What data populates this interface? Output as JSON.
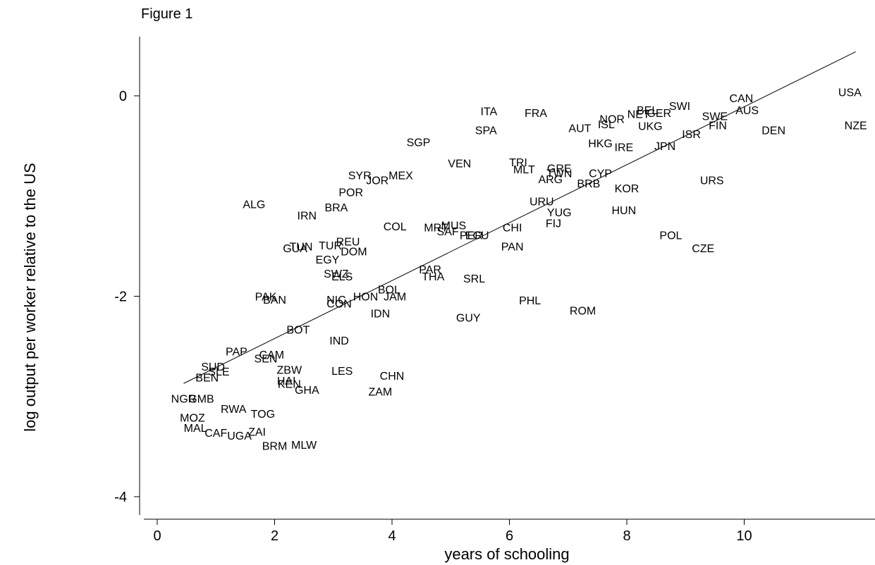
{
  "figure_title": "Figure 1",
  "chart_data": {
    "type": "scatter",
    "xlabel": "years of schooling",
    "ylabel": "log output per worker relative to the US",
    "xlim": [
      -0.3,
      12.4
    ],
    "ylim": [
      -4.2,
      0.6
    ],
    "xticks": [
      0,
      2,
      4,
      6,
      8,
      10
    ],
    "yticks": [
      0,
      -2,
      -4
    ],
    "xtick_labels": [
      "0",
      "2",
      "4",
      "6",
      "8",
      "10"
    ],
    "ytick_labels": [
      "0",
      "-2",
      "-4"
    ],
    "grid": false,
    "marker": "country code text",
    "fit_line": {
      "x": [
        0.45,
        11.9
      ],
      "y": [
        -2.87,
        0.44
      ]
    },
    "points": [
      {
        "label": "USA",
        "x": 11.8,
        "y": 0.04
      },
      {
        "label": "NZE",
        "x": 11.9,
        "y": -0.29
      },
      {
        "label": "CAN",
        "x": 9.95,
        "y": -0.02
      },
      {
        "label": "AUS",
        "x": 10.05,
        "y": -0.14
      },
      {
        "label": "DEN",
        "x": 10.5,
        "y": -0.34
      },
      {
        "label": "SWI",
        "x": 8.9,
        "y": -0.1
      },
      {
        "label": "SWE",
        "x": 9.5,
        "y": -0.2
      },
      {
        "label": "FIN",
        "x": 9.55,
        "y": -0.29
      },
      {
        "label": "BEL",
        "x": 8.35,
        "y": -0.14
      },
      {
        "label": "NET",
        "x": 8.2,
        "y": -0.18
      },
      {
        "label": "GER",
        "x": 8.55,
        "y": -0.17
      },
      {
        "label": "NOR",
        "x": 7.75,
        "y": -0.23
      },
      {
        "label": "ISL",
        "x": 7.65,
        "y": -0.28
      },
      {
        "label": "UKG",
        "x": 8.4,
        "y": -0.3
      },
      {
        "label": "AUT",
        "x": 7.2,
        "y": -0.32
      },
      {
        "label": "ISR",
        "x": 9.1,
        "y": -0.38
      },
      {
        "label": "ITA",
        "x": 5.65,
        "y": -0.15
      },
      {
        "label": "FRA",
        "x": 6.45,
        "y": -0.17
      },
      {
        "label": "SPA",
        "x": 5.6,
        "y": -0.34
      },
      {
        "label": "HKG",
        "x": 7.55,
        "y": -0.47
      },
      {
        "label": "IRE",
        "x": 7.95,
        "y": -0.51
      },
      {
        "label": "JPN",
        "x": 8.65,
        "y": -0.5
      },
      {
        "label": "SGP",
        "x": 4.45,
        "y": -0.46
      },
      {
        "label": "VEN",
        "x": 5.15,
        "y": -0.67
      },
      {
        "label": "TRI",
        "x": 6.15,
        "y": -0.66
      },
      {
        "label": "MLT",
        "x": 6.25,
        "y": -0.73
      },
      {
        "label": "GRE",
        "x": 6.85,
        "y": -0.72
      },
      {
        "label": "TWN",
        "x": 6.85,
        "y": -0.77
      },
      {
        "label": "ARG",
        "x": 6.7,
        "y": -0.83
      },
      {
        "label": "CYP",
        "x": 7.55,
        "y": -0.77
      },
      {
        "label": "BRB",
        "x": 7.35,
        "y": -0.87
      },
      {
        "label": "KOR",
        "x": 8.0,
        "y": -0.92
      },
      {
        "label": "URS",
        "x": 9.45,
        "y": -0.84
      },
      {
        "label": "SYR",
        "x": 3.45,
        "y": -0.79
      },
      {
        "label": "JOR",
        "x": 3.75,
        "y": -0.84
      },
      {
        "label": "MEX",
        "x": 4.15,
        "y": -0.79
      },
      {
        "label": "POR",
        "x": 3.3,
        "y": -0.96
      },
      {
        "label": "ALG",
        "x": 1.65,
        "y": -1.08
      },
      {
        "label": "IRN",
        "x": 2.55,
        "y": -1.19
      },
      {
        "label": "BRA",
        "x": 3.05,
        "y": -1.11
      },
      {
        "label": "URU",
        "x": 6.55,
        "y": -1.05
      },
      {
        "label": "YUG",
        "x": 6.85,
        "y": -1.16
      },
      {
        "label": "FIJ",
        "x": 6.75,
        "y": -1.27
      },
      {
        "label": "HUN",
        "x": 7.95,
        "y": -1.14
      },
      {
        "label": "COL",
        "x": 4.05,
        "y": -1.3
      },
      {
        "label": "MRT",
        "x": 4.75,
        "y": -1.31
      },
      {
        "label": "MUS",
        "x": 5.05,
        "y": -1.29
      },
      {
        "label": "SAF",
        "x": 4.95,
        "y": -1.35
      },
      {
        "label": "PER",
        "x": 5.35,
        "y": -1.39
      },
      {
        "label": "ECU",
        "x": 5.45,
        "y": -1.39
      },
      {
        "label": "CHI",
        "x": 6.05,
        "y": -1.31
      },
      {
        "label": "PAN",
        "x": 6.05,
        "y": -1.5
      },
      {
        "label": "POL",
        "x": 8.75,
        "y": -1.39
      },
      {
        "label": "CZE",
        "x": 9.3,
        "y": -1.52
      },
      {
        "label": "TUN",
        "x": 2.45,
        "y": -1.5
      },
      {
        "label": "GUA",
        "x": 2.35,
        "y": -1.52
      },
      {
        "label": "TUR",
        "x": 2.95,
        "y": -1.49
      },
      {
        "label": "REU",
        "x": 3.25,
        "y": -1.45
      },
      {
        "label": "DOM",
        "x": 3.35,
        "y": -1.55
      },
      {
        "label": "EGY",
        "x": 2.9,
        "y": -1.63
      },
      {
        "label": "SWZ",
        "x": 3.05,
        "y": -1.77
      },
      {
        "label": "ELS",
        "x": 3.15,
        "y": -1.8
      },
      {
        "label": "PAR",
        "x": 4.65,
        "y": -1.73
      },
      {
        "label": "THA",
        "x": 4.7,
        "y": -1.8
      },
      {
        "label": "SRL",
        "x": 5.4,
        "y": -1.82
      },
      {
        "label": "PAK",
        "x": 1.85,
        "y": -2.0
      },
      {
        "label": "BAN",
        "x": 2.0,
        "y": -2.03
      },
      {
        "label": "NIC",
        "x": 3.05,
        "y": -2.03
      },
      {
        "label": "CON",
        "x": 3.1,
        "y": -2.07
      },
      {
        "label": "HON",
        "x": 3.55,
        "y": -2.0
      },
      {
        "label": "BOL",
        "x": 3.95,
        "y": -1.93
      },
      {
        "label": "JAM",
        "x": 4.05,
        "y": -2.0
      },
      {
        "label": "IDN",
        "x": 3.8,
        "y": -2.17
      },
      {
        "label": "GUY",
        "x": 5.3,
        "y": -2.21
      },
      {
        "label": "PHL",
        "x": 6.35,
        "y": -2.04
      },
      {
        "label": "ROM",
        "x": 7.25,
        "y": -2.14
      },
      {
        "label": "BOT",
        "x": 2.4,
        "y": -2.33
      },
      {
        "label": "IND",
        "x": 3.1,
        "y": -2.44
      },
      {
        "label": "PAP",
        "x": 1.35,
        "y": -2.55
      },
      {
        "label": "CAM",
        "x": 1.95,
        "y": -2.58
      },
      {
        "label": "SEN",
        "x": 1.85,
        "y": -2.62
      },
      {
        "label": "SUD",
        "x": 0.95,
        "y": -2.7
      },
      {
        "label": "SLE",
        "x": 1.05,
        "y": -2.75
      },
      {
        "label": "BEN",
        "x": 0.85,
        "y": -2.81
      },
      {
        "label": "ZBW",
        "x": 2.25,
        "y": -2.73
      },
      {
        "label": "HAI",
        "x": 2.2,
        "y": -2.84
      },
      {
        "label": "KEN",
        "x": 2.25,
        "y": -2.87
      },
      {
        "label": "GHA",
        "x": 2.55,
        "y": -2.93
      },
      {
        "label": "LES",
        "x": 3.15,
        "y": -2.74
      },
      {
        "label": "CHN",
        "x": 4.0,
        "y": -2.79
      },
      {
        "label": "ZAM",
        "x": 3.8,
        "y": -2.95
      },
      {
        "label": "NGR",
        "x": 0.45,
        "y": -3.02
      },
      {
        "label": "GMB",
        "x": 0.75,
        "y": -3.02
      },
      {
        "label": "RWA",
        "x": 1.3,
        "y": -3.12
      },
      {
        "label": "TOG",
        "x": 1.8,
        "y": -3.17
      },
      {
        "label": "MOZ",
        "x": 0.6,
        "y": -3.21
      },
      {
        "label": "MAL",
        "x": 0.65,
        "y": -3.31
      },
      {
        "label": "CAF",
        "x": 1.0,
        "y": -3.36
      },
      {
        "label": "UGA",
        "x": 1.4,
        "y": -3.39
      },
      {
        "label": "ZAI",
        "x": 1.7,
        "y": -3.35
      },
      {
        "label": "BRM",
        "x": 2.0,
        "y": -3.49
      },
      {
        "label": "MLW",
        "x": 2.5,
        "y": -3.48
      }
    ]
  }
}
